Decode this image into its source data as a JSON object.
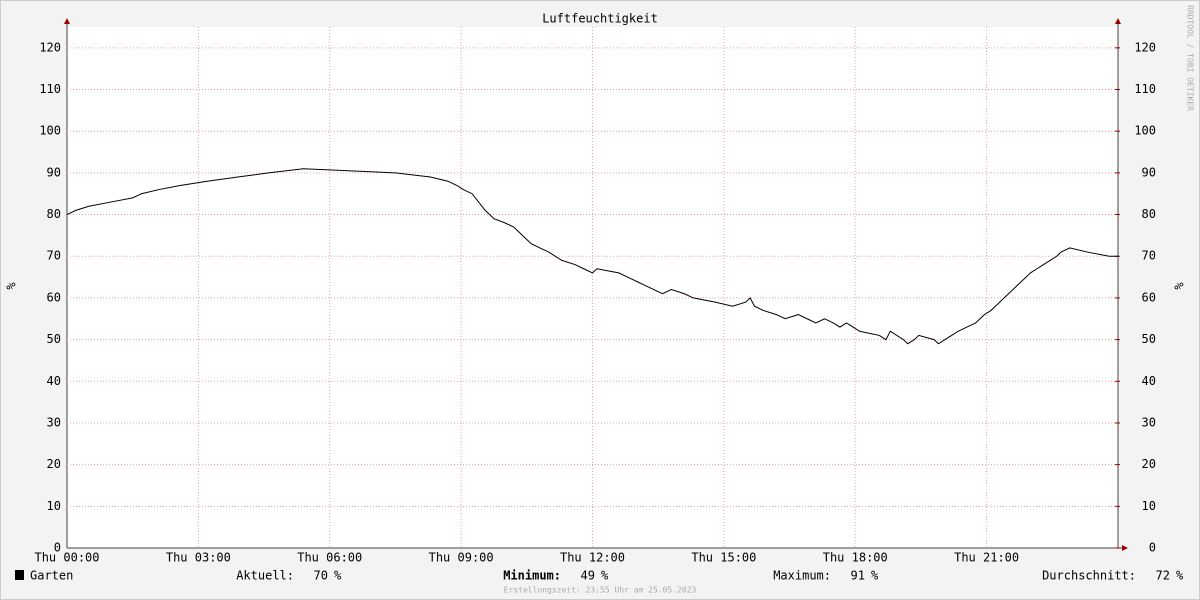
{
  "chart_data": {
    "type": "line",
    "title": "Luftfeuchtigkeit",
    "ylabel": "%",
    "y2label": "%",
    "x": [
      0,
      0.2,
      0.5,
      1.0,
      1.5,
      1.7,
      2.1,
      2.6,
      3.2,
      3.9,
      4.6,
      5.4,
      7.5,
      8.3,
      8.7,
      8.9,
      9.05,
      9.25,
      9.4,
      9.55,
      9.75,
      10.0,
      10.2,
      10.4,
      10.6,
      10.8,
      11.0,
      11.3,
      11.6,
      11.8,
      12.0,
      12.1,
      12.6,
      12.8,
      13.0,
      13.2,
      13.4,
      13.6,
      13.8,
      14.1,
      14.3,
      14.8,
      15.2,
      15.5,
      15.6,
      15.7,
      15.9,
      16.2,
      16.4,
      16.7,
      16.9,
      17.1,
      17.3,
      17.5,
      17.65,
      17.8,
      17.95,
      18.1,
      18.55,
      18.7,
      18.8,
      19.1,
      19.2,
      19.35,
      19.45,
      19.8,
      19.9,
      20.05,
      20.2,
      20.35,
      20.55,
      20.75,
      20.85,
      20.95,
      21.1,
      21.2,
      21.3,
      21.4,
      21.5,
      21.6,
      21.7,
      21.8,
      21.9,
      22.0,
      22.15,
      22.3,
      22.45,
      22.6,
      22.7,
      22.9,
      23.3,
      23.8,
      24
    ],
    "series": [
      {
        "name": "Garten",
        "color": "#000000",
        "values": [
          80,
          81,
          82,
          83,
          84,
          85,
          86,
          87,
          88,
          89,
          90,
          91,
          90,
          89,
          88,
          87,
          86,
          85,
          83,
          81,
          79,
          78,
          77,
          75,
          73,
          72,
          71,
          69,
          68,
          67,
          66,
          67,
          66,
          65,
          64,
          63,
          62,
          61,
          62,
          61,
          60,
          59,
          58,
          59,
          60,
          58,
          57,
          56,
          55,
          56,
          55,
          54,
          55,
          54,
          53,
          54,
          53,
          52,
          51,
          50,
          52,
          50,
          49,
          50,
          51,
          50,
          49,
          50,
          51,
          52,
          53,
          54,
          55,
          56,
          57,
          58,
          59,
          60,
          61,
          62,
          63,
          64,
          65,
          66,
          67,
          68,
          69,
          70,
          71,
          72,
          71,
          70,
          70
        ]
      }
    ],
    "xlim": [
      0,
      24
    ],
    "xticks": [
      {
        "value": 0,
        "label": "Thu 00:00"
      },
      {
        "value": 3,
        "label": "Thu 03:00"
      },
      {
        "value": 6,
        "label": "Thu 06:00"
      },
      {
        "value": 9,
        "label": "Thu 09:00"
      },
      {
        "value": 12,
        "label": "Thu 12:00"
      },
      {
        "value": 15,
        "label": "Thu 15:00"
      },
      {
        "value": 18,
        "label": "Thu 18:00"
      },
      {
        "value": 21,
        "label": "Thu 21:00"
      }
    ],
    "ylim": [
      0,
      125
    ],
    "yticks": [
      0,
      10,
      20,
      30,
      40,
      50,
      60,
      70,
      80,
      90,
      100,
      110,
      120
    ],
    "y2lim": [
      0,
      125
    ],
    "y2ticks": [
      0,
      10,
      20,
      30,
      40,
      50,
      60,
      70,
      80,
      90,
      100,
      110,
      120
    ],
    "grid": true,
    "grid_color": "#e8a0a0",
    "stats": [
      {
        "label": "Aktuell:",
        "value": 70,
        "unit": "%"
      },
      {
        "label": "Minimum:",
        "value": 49,
        "unit": "%"
      },
      {
        "label": "Maximum:",
        "value": 91,
        "unit": "%"
      },
      {
        "label": "Durchschnitt:",
        "value": 72,
        "unit": "%"
      }
    ],
    "watermark": "RRDTOOL / TOBI OETIKER",
    "footer": "Erstellungszeit: 23:55 Uhr am 25.05.2023"
  }
}
